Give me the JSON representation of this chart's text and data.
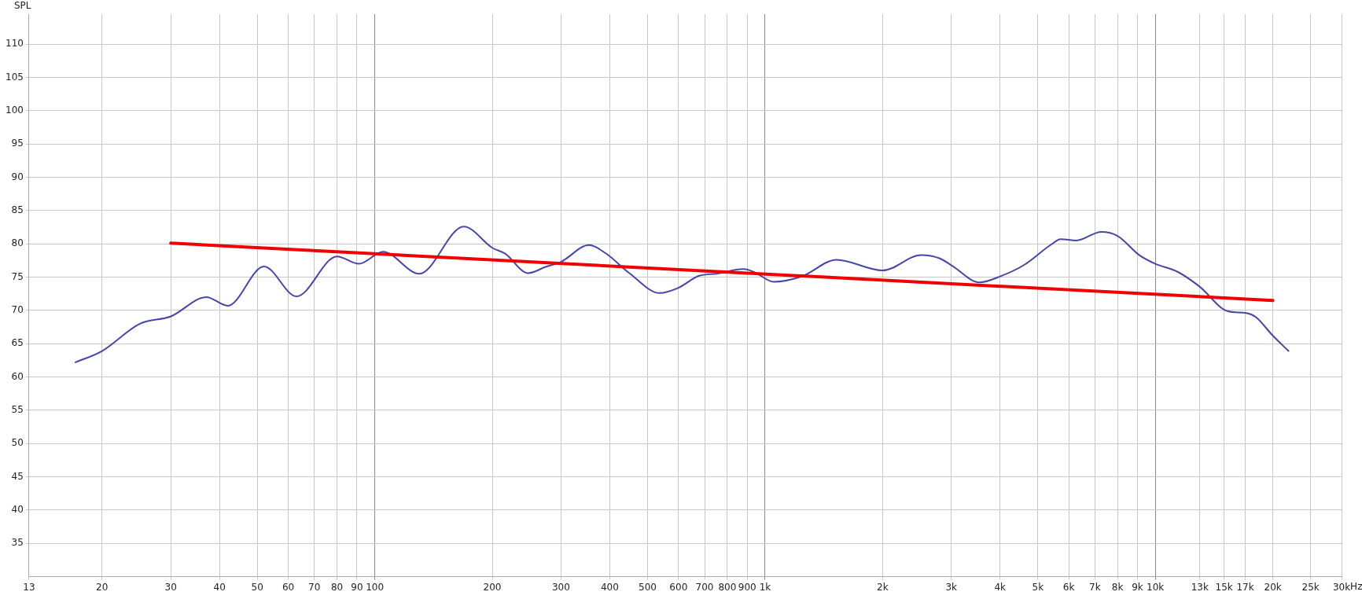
{
  "chart_data": {
    "type": "line",
    "ylabel": "SPL",
    "log": "x",
    "grid": true,
    "legend": false,
    "marker": "none",
    "line_style": "solid",
    "xlim": [
      13,
      30000
    ],
    "ylim": [
      30,
      114.5
    ],
    "xticks": [
      13,
      20,
      30,
      40,
      50,
      60,
      70,
      80,
      90,
      100,
      200,
      300,
      400,
      500,
      600,
      700,
      800,
      900,
      {
        "value": 1000,
        "label": "1k"
      },
      {
        "value": 2000,
        "label": "2k"
      },
      {
        "value": 3000,
        "label": "3k"
      },
      {
        "value": 4000,
        "label": "4k"
      },
      {
        "value": 5000,
        "label": "5k"
      },
      {
        "value": 6000,
        "label": "6k"
      },
      {
        "value": 7000,
        "label": "7k"
      },
      {
        "value": 8000,
        "label": "8k"
      },
      {
        "value": 9000,
        "label": "9k"
      },
      {
        "value": 10000,
        "label": "10k"
      },
      {
        "value": 13000,
        "label": "13k"
      },
      {
        "value": 15000,
        "label": "15k"
      },
      {
        "value": 17000,
        "label": "17k"
      },
      {
        "value": 20000,
        "label": "20k"
      },
      {
        "value": 25000,
        "label": "25k"
      },
      {
        "value": 30000,
        "label": "30k"
      }
    ],
    "xlabel": "Hz",
    "yticks": [
      35,
      40,
      45,
      50,
      55,
      60,
      65,
      70,
      75,
      80,
      85,
      90,
      95,
      100,
      105,
      110
    ],
    "series": [
      {
        "color": "#4646aa",
        "x": [
          17.1,
          20,
          25,
          30,
          37,
          42,
          52,
          63,
          80,
          91,
          105,
          130,
          169,
          200,
          216,
          247,
          273,
          300,
          354,
          390,
          449,
          537,
          600,
          678,
          751,
          880,
          942,
          1052,
          1240,
          1525,
          2000,
          2510,
          2804,
          3016,
          3541,
          4000,
          4602,
          5410,
          5720,
          6270,
          7270,
          8000,
          9100,
          10000,
          11400,
          12970,
          15300,
          17100,
          18080,
          20000,
          21940
        ],
        "values": [
          62.2,
          63.9,
          68.0,
          69.1,
          72.0,
          70.7,
          76.6,
          72.1,
          78.1,
          77.0,
          78.8,
          75.5,
          82.6,
          79.4,
          78.5,
          75.6,
          76.5,
          77.3,
          79.8,
          78.6,
          75.6,
          72.6,
          73.4,
          75.2,
          75.5,
          76.2,
          75.7,
          74.3,
          75.1,
          77.6,
          76.0,
          78.3,
          77.8,
          76.7,
          74.2,
          75.1,
          76.8,
          79.9,
          80.7,
          80.5,
          81.8,
          81.2,
          78.3,
          77.0,
          75.8,
          73.6,
          69.9,
          69.6,
          69.0,
          66.2,
          63.9
        ]
      },
      {
        "type": "line",
        "color": "#ee0000",
        "x": [
          30,
          20000
        ],
        "values": [
          80.1,
          71.5
        ]
      }
    ]
  }
}
